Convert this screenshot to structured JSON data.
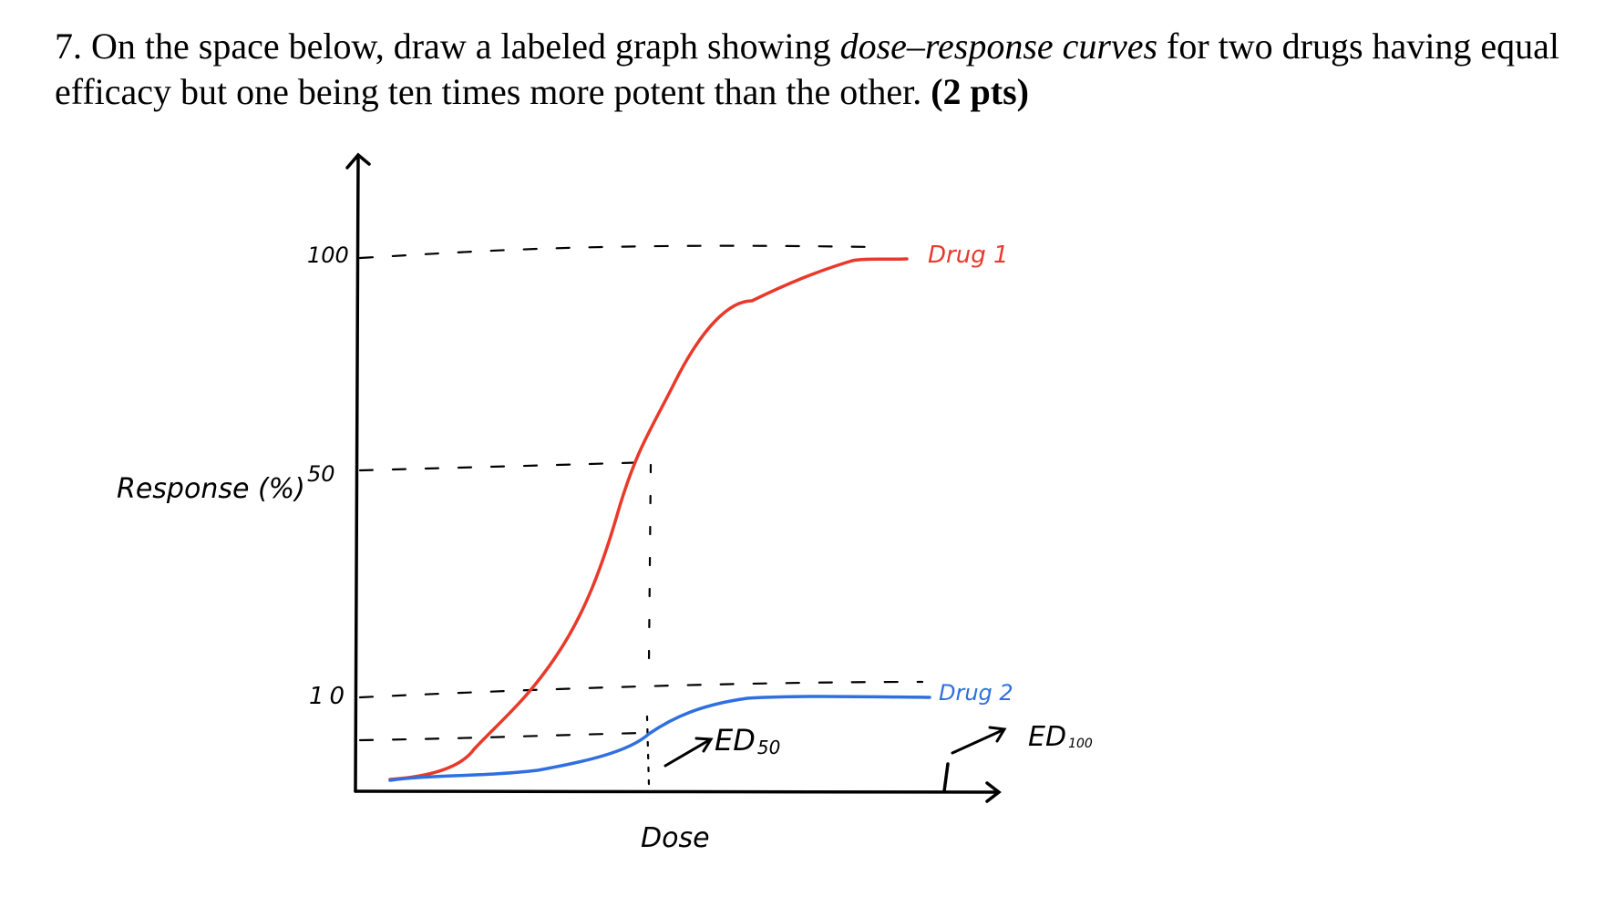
{
  "question": {
    "number": "7.",
    "text_1": "On the space below, draw a labeled graph showing",
    "emphasis": "dose–response curves",
    "text_2": "for two drugs having equal efficacy but one being ten times more potent than the other.",
    "points": "(2 pts)"
  },
  "chart_data": {
    "type": "line",
    "title": "",
    "xlabel": "Dose",
    "ylabel": "Response (%)",
    "yticks": [
      "100",
      "50",
      "10"
    ],
    "series": [
      {
        "name": "Drug 1",
        "color": "#e8392a",
        "plateau": 100,
        "midpoint_response": 50
      },
      {
        "name": "Drug 2",
        "color": "#2f6fe0",
        "plateau": 10
      }
    ],
    "annotations": [
      "ED50",
      "ED100"
    ],
    "ed50_label": "ED",
    "ed50_sub": "50",
    "ed100_label": "ED",
    "ed100_sub": "100"
  },
  "colors": {
    "ink": "#000000",
    "drug1": "#e8392a",
    "drug2": "#2f6fe0"
  }
}
